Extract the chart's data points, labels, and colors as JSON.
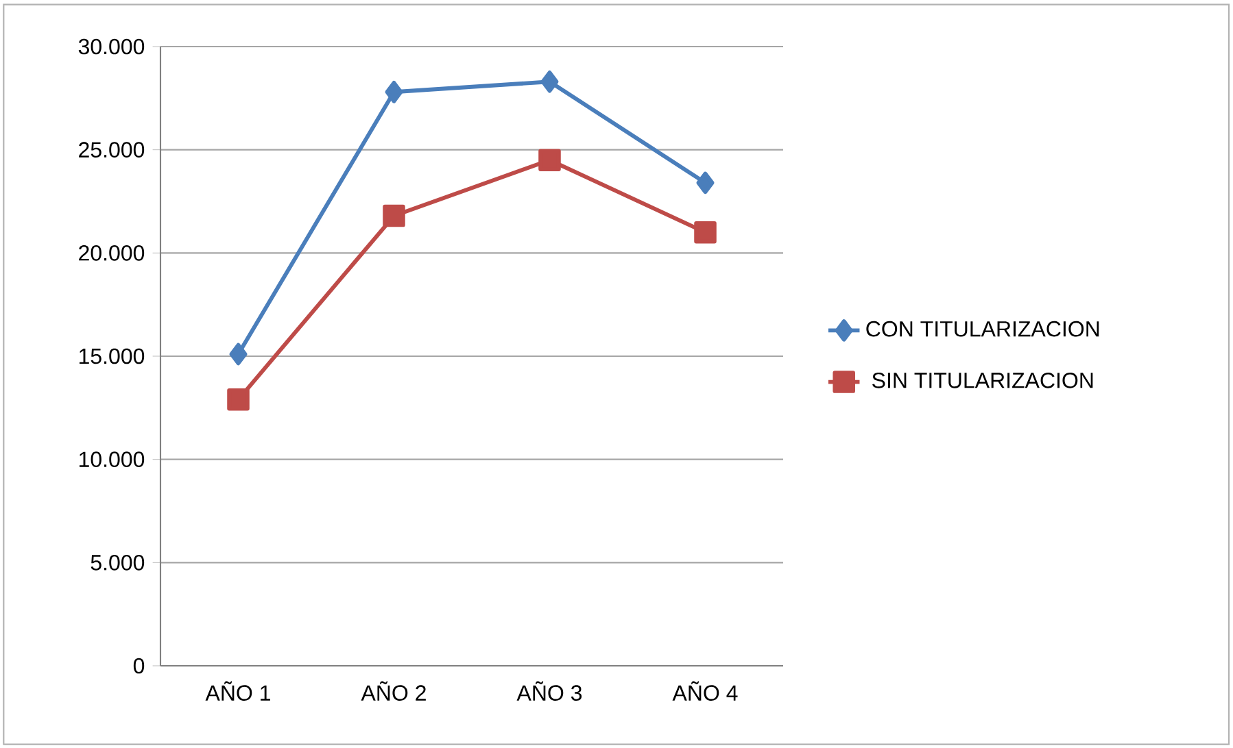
{
  "chart_data": {
    "type": "line",
    "categories": [
      "AÑO 1",
      "AÑO 2",
      "AÑO 3",
      "AÑO 4"
    ],
    "series": [
      {
        "name": "CON TITULARIZACION",
        "color": "#4a7ebb",
        "marker": "diamond",
        "values": [
          15100,
          27800,
          28300,
          23400
        ]
      },
      {
        "name": "SIN TITULARIZACION",
        "color": "#be4b48",
        "marker": "square",
        "values": [
          12900,
          21800,
          24500,
          21000
        ]
      }
    ],
    "ylim": [
      0,
      30000
    ],
    "yticks": [
      0,
      {
        "value": 5000,
        "label": "5.000"
      },
      {
        "value": 10000,
        "label": "10.000"
      },
      {
        "value": 15000,
        "label": "15.000"
      },
      {
        "value": 20000,
        "label": "20.000"
      },
      {
        "value": 25000,
        "label": "25.000"
      },
      {
        "value": 30000,
        "label": "30.000"
      }
    ],
    "grid": "y",
    "legend": "right",
    "line_style": "solid"
  }
}
